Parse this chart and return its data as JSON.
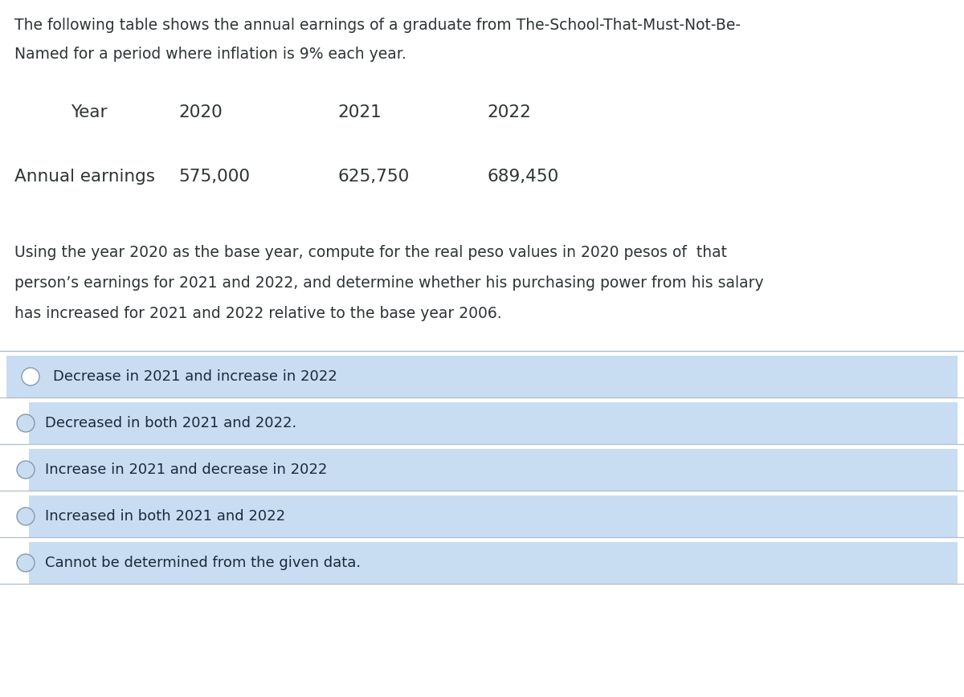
{
  "bg_color": "#ffffff",
  "text_color": "#2d3436",
  "intro_line1": "The following table shows the annual earnings of a graduate from The-School-That-Must-Not-Be-",
  "intro_line2": "Named for a period where inflation is 9% each year.",
  "table_headers": [
    "Year",
    "2020",
    "2021",
    "2022"
  ],
  "table_row_label": "Annual earnings",
  "table_values": [
    "575,000",
    "625,750",
    "689,450"
  ],
  "question_line1": "Using the year 2020 as the base year, compute for the real peso values in 2020 pesos of  that",
  "question_line2": "person’s earnings for 2021 and 2022, and determine whether his purchasing power from his salary",
  "question_line3": "has increased for 2021 and 2022 relative to the base year 2006.",
  "options": [
    "Decrease in 2021 and increase in 2022",
    "Decreased in both 2021 and 2022.",
    "Increase in 2021 and decrease in 2022",
    "Increased in both 2021 and 2022",
    "Cannot be determined from the given data."
  ],
  "option_has_white_bar": [
    false,
    true,
    true,
    true,
    true
  ],
  "option_bg": "#c8ddf2",
  "option_text_color": "#1a2a3a",
  "separator_color": "#b0bec8",
  "font_size_intro": 13.5,
  "font_size_table": 15.5,
  "font_size_question": 13.5,
  "font_size_option": 13.0
}
